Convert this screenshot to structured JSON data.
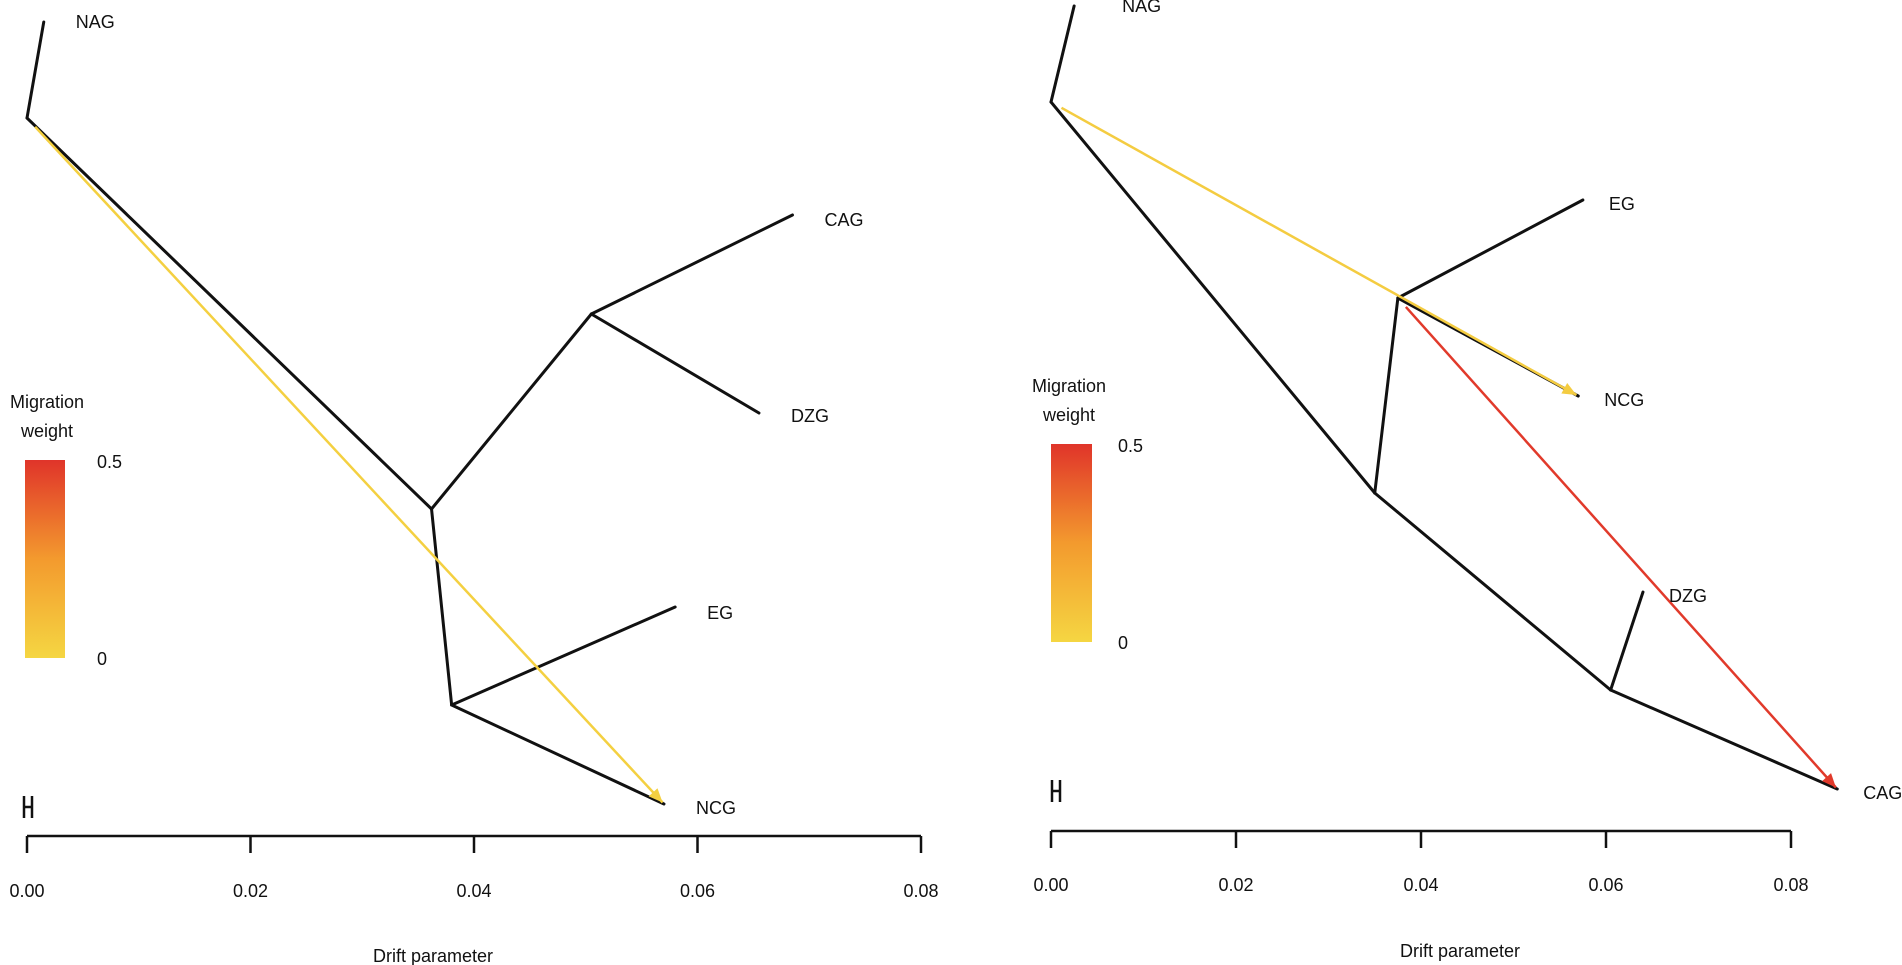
{
  "chart_data": [
    {
      "type": "tree",
      "subtype": "treemix",
      "xlabel": "Drift parameter",
      "xlim": [
        0,
        0.08
      ],
      "x_ticks": [
        0,
        0.02,
        0.04,
        0.06,
        0.08
      ],
      "x_tick_labels": [
        "0.00",
        "0.02",
        "0.04",
        "0.06",
        "0.08"
      ],
      "legend": {
        "title_line1": "Migration",
        "title_line2": "weight",
        "max_label": "0.5",
        "min_label": "0",
        "low_color": "#f5d642",
        "high_color": "#e0342a"
      },
      "nodes": [
        {
          "id": "root",
          "drift": 0.0,
          "rank": 0.12
        },
        {
          "id": "NAG",
          "label": "NAG",
          "drift": 0.0015,
          "rank": 0.0
        },
        {
          "id": "n1",
          "drift": 0.0362,
          "rank": 0.5
        },
        {
          "id": "n2",
          "drift": 0.0505,
          "rank": 0.3
        },
        {
          "id": "CAG",
          "label": "CAG",
          "drift": 0.0685,
          "rank": 0.2
        },
        {
          "id": "DZG",
          "label": "DZG",
          "drift": 0.0655,
          "rank": 0.4
        },
        {
          "id": "n3",
          "drift": 0.038,
          "rank": 0.7
        },
        {
          "id": "EG",
          "label": "EG",
          "drift": 0.058,
          "rank": 0.6
        },
        {
          "id": "NCG",
          "label": "NCG",
          "drift": 0.057,
          "rank": 0.8
        }
      ],
      "edges": [
        [
          "root",
          "NAG"
        ],
        [
          "root",
          "n1"
        ],
        [
          "n1",
          "n2"
        ],
        [
          "n2",
          "CAG"
        ],
        [
          "n2",
          "DZG"
        ],
        [
          "n1",
          "n3"
        ],
        [
          "n3",
          "EG"
        ],
        [
          "n3",
          "NCG"
        ]
      ],
      "migrations": [
        {
          "from": "root",
          "to": "NCG",
          "weight": 0.02
        }
      ]
    },
    {
      "type": "tree",
      "subtype": "treemix",
      "xlabel": "Drift parameter",
      "xlim": [
        0,
        0.08
      ],
      "x_ticks": [
        0,
        0.02,
        0.04,
        0.06,
        0.08
      ],
      "x_tick_labels": [
        "0.00",
        "0.02",
        "0.04",
        "0.06",
        "0.08"
      ],
      "legend": {
        "title_line1": "Migration",
        "title_line2": "weight",
        "max_label": "0.5",
        "min_label": "0",
        "low_color": "#f5d642",
        "high_color": "#e0342a"
      },
      "nodes": [
        {
          "id": "root",
          "drift": 0.0,
          "rank": 0.1
        },
        {
          "id": "NAG",
          "label": "NAG",
          "drift": 0.0025,
          "rank": 0.0
        },
        {
          "id": "n1",
          "drift": 0.035,
          "rank": 0.5
        },
        {
          "id": "n2",
          "drift": 0.0375,
          "rank": 0.3
        },
        {
          "id": "EG",
          "label": "EG",
          "drift": 0.0575,
          "rank": 0.2
        },
        {
          "id": "NCG",
          "label": "NCG",
          "drift": 0.057,
          "rank": 0.4
        },
        {
          "id": "n3",
          "drift": 0.0605,
          "rank": 0.7
        },
        {
          "id": "DZG",
          "label": "DZG",
          "drift": 0.064,
          "rank": 0.6
        },
        {
          "id": "CAG",
          "label": "CAG",
          "drift": 0.085,
          "rank": 0.8
        }
      ],
      "edges": [
        [
          "root",
          "NAG"
        ],
        [
          "root",
          "n1"
        ],
        [
          "n1",
          "n2"
        ],
        [
          "n2",
          "EG"
        ],
        [
          "n2",
          "NCG"
        ],
        [
          "n1",
          "n3"
        ],
        [
          "n3",
          "DZG"
        ],
        [
          "n3",
          "CAG"
        ]
      ],
      "migrations": [
        {
          "from": "root",
          "to": "NCG",
          "weight": 0.03
        },
        {
          "from": "n2",
          "to": "CAG",
          "weight": 0.48
        }
      ]
    }
  ]
}
